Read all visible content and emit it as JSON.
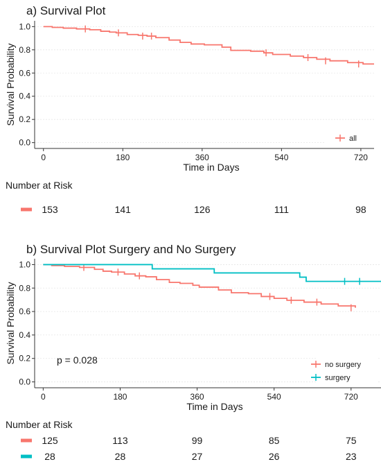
{
  "chart_data": [
    {
      "type": "line",
      "title": "a) Survival Plot",
      "xlabel": "Time in Days",
      "ylabel": "Survival Probability",
      "xlim": [
        -20,
        750
      ],
      "ylim": [
        -0.05,
        1.05
      ],
      "xticks": [
        0,
        180,
        360,
        540,
        720
      ],
      "xtick_labels": [
        "0",
        "180",
        "360",
        "540",
        "720"
      ],
      "yticks": [
        0,
        0.2,
        0.4,
        0.6,
        0.8,
        1.0
      ],
      "ytick_labels": [
        "0.0",
        "0.2",
        "0.4",
        "0.6",
        "0.8",
        "1.0"
      ],
      "grid": "horizontal dotted",
      "legend": "bottom-right",
      "series": [
        {
          "name": "all",
          "color": "#F8766D",
          "steps": [
            [
              0,
              1.0
            ],
            [
              20,
              0.993
            ],
            [
              45,
              0.987
            ],
            [
              75,
              0.98
            ],
            [
              105,
              0.973
            ],
            [
              130,
              0.96
            ],
            [
              150,
              0.953
            ],
            [
              165,
              0.946
            ],
            [
              190,
              0.932
            ],
            [
              215,
              0.925
            ],
            [
              235,
              0.918
            ],
            [
              255,
              0.905
            ],
            [
              285,
              0.884
            ],
            [
              310,
              0.864
            ],
            [
              335,
              0.85
            ],
            [
              365,
              0.843
            ],
            [
              405,
              0.823
            ],
            [
              425,
              0.795
            ],
            [
              470,
              0.788
            ],
            [
              500,
              0.774
            ],
            [
              520,
              0.76
            ],
            [
              560,
              0.746
            ],
            [
              590,
              0.733
            ],
            [
              620,
              0.719
            ],
            [
              650,
              0.705
            ],
            [
              690,
              0.69
            ],
            [
              725,
              0.678
            ],
            [
              750,
              0.678
            ]
          ],
          "censors": [
            [
              95,
              0.98
            ],
            [
              170,
              0.946
            ],
            [
              225,
              0.918
            ],
            [
              245,
              0.918
            ],
            [
              505,
              0.774
            ],
            [
              600,
              0.733
            ],
            [
              640,
              0.705
            ],
            [
              715,
              0.678
            ]
          ]
        }
      ],
      "risk_table": {
        "heading": "Number at Risk",
        "times": [
          0,
          180,
          360,
          540,
          720
        ],
        "rows": [
          {
            "color": "#F8766D",
            "counts": [
              "153",
              "141",
              "126",
              "111",
              "98"
            ]
          }
        ]
      }
    },
    {
      "type": "line",
      "title": "b) Survival Plot Surgery and No Surgery",
      "xlabel": "Time in Days",
      "ylabel": "Survival Probability",
      "xlim": [
        -20,
        790
      ],
      "ylim": [
        -0.05,
        1.05
      ],
      "xticks": [
        0,
        180,
        360,
        540,
        720
      ],
      "xtick_labels": [
        "0",
        "180",
        "360",
        "540",
        "720"
      ],
      "yticks": [
        0,
        0.2,
        0.4,
        0.6,
        0.8,
        1.0
      ],
      "ytick_labels": [
        "0.0",
        "0.2",
        "0.4",
        "0.6",
        "0.8",
        "1.0"
      ],
      "grid": "horizontal dotted",
      "legend": "bottom-right",
      "annotation": "p = 0.028",
      "series": [
        {
          "name": "no surgery",
          "color": "#F8766D",
          "steps": [
            [
              0,
              1.0
            ],
            [
              20,
              0.992
            ],
            [
              50,
              0.984
            ],
            [
              85,
              0.976
            ],
            [
              120,
              0.96
            ],
            [
              140,
              0.944
            ],
            [
              160,
              0.936
            ],
            [
              190,
              0.92
            ],
            [
              215,
              0.904
            ],
            [
              240,
              0.896
            ],
            [
              265,
              0.872
            ],
            [
              295,
              0.848
            ],
            [
              320,
              0.84
            ],
            [
              350,
              0.824
            ],
            [
              365,
              0.808
            ],
            [
              410,
              0.784
            ],
            [
              440,
              0.76
            ],
            [
              480,
              0.752
            ],
            [
              510,
              0.728
            ],
            [
              540,
              0.712
            ],
            [
              570,
              0.696
            ],
            [
              610,
              0.68
            ],
            [
              650,
              0.664
            ],
            [
              690,
              0.648
            ],
            [
              730,
              0.632
            ]
          ],
          "censors": [
            [
              95,
              0.976
            ],
            [
              175,
              0.936
            ],
            [
              225,
              0.904
            ],
            [
              530,
              0.728
            ],
            [
              580,
              0.696
            ],
            [
              640,
              0.68
            ],
            [
              720,
              0.632
            ]
          ]
        },
        {
          "name": "surgery",
          "color": "#00BFC4",
          "steps": [
            [
              0,
              1.0
            ],
            [
              255,
              0.964
            ],
            [
              400,
              0.929
            ],
            [
              600,
              0.893
            ],
            [
              615,
              0.857
            ],
            [
              790,
              0.857
            ]
          ],
          "censors": [
            [
              705,
              0.857
            ],
            [
              740,
              0.857
            ]
          ]
        }
      ],
      "risk_table": {
        "heading": "Number at Risk",
        "times": [
          0,
          180,
          360,
          540,
          720
        ],
        "rows": [
          {
            "color": "#F8766D",
            "counts": [
              "125",
              "113",
              "99",
              "85",
              "75"
            ]
          },
          {
            "color": "#00BFC4",
            "counts": [
              "28",
              "28",
              "27",
              "26",
              "23"
            ]
          }
        ]
      }
    }
  ]
}
